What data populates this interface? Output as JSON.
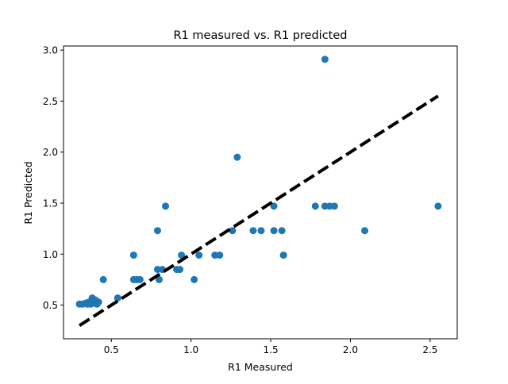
{
  "chart_data": {
    "type": "scatter",
    "title": "R1 measured vs. R1 predicted",
    "xlabel": "R1 Measured",
    "ylabel": "R1 Predicted",
    "xlim": [
      0.2,
      2.67
    ],
    "ylim": [
      0.17,
      3.04
    ],
    "xticks": [
      "0.5",
      "1.0",
      "1.5",
      "2.0",
      "2.5"
    ],
    "yticks": [
      "0.5",
      "1.0",
      "1.5",
      "2.0",
      "2.5",
      "3.0"
    ],
    "grid": false,
    "series": [
      {
        "marker_color": "#1f77b4",
        "points": [
          [
            0.3,
            0.51
          ],
          [
            0.32,
            0.51
          ],
          [
            0.34,
            0.52
          ],
          [
            0.35,
            0.51
          ],
          [
            0.36,
            0.53
          ],
          [
            0.37,
            0.51
          ],
          [
            0.38,
            0.55
          ],
          [
            0.38,
            0.57
          ],
          [
            0.39,
            0.52
          ],
          [
            0.4,
            0.55
          ],
          [
            0.41,
            0.51
          ],
          [
            0.42,
            0.53
          ],
          [
            0.45,
            0.75
          ],
          [
            0.54,
            0.57
          ],
          [
            0.64,
            0.75
          ],
          [
            0.64,
            0.99
          ],
          [
            0.66,
            0.75
          ],
          [
            0.68,
            0.75
          ],
          [
            0.79,
            1.23
          ],
          [
            0.79,
            0.85
          ],
          [
            0.8,
            0.75
          ],
          [
            0.82,
            0.85
          ],
          [
            0.84,
            1.47
          ],
          [
            0.91,
            0.85
          ],
          [
            0.93,
            0.85
          ],
          [
            0.94,
            0.99
          ],
          [
            1.02,
            0.75
          ],
          [
            1.05,
            0.99
          ],
          [
            1.15,
            0.99
          ],
          [
            1.18,
            0.99
          ],
          [
            1.26,
            1.23
          ],
          [
            1.29,
            1.95
          ],
          [
            1.39,
            1.23
          ],
          [
            1.44,
            1.23
          ],
          [
            1.52,
            1.47
          ],
          [
            1.52,
            1.23
          ],
          [
            1.57,
            1.23
          ],
          [
            1.58,
            0.99
          ],
          [
            1.78,
            1.47
          ],
          [
            1.84,
            2.91
          ],
          [
            1.84,
            1.47
          ],
          [
            1.87,
            1.47
          ],
          [
            1.9,
            1.47
          ],
          [
            2.09,
            1.23
          ],
          [
            2.55,
            1.47
          ]
        ]
      }
    ],
    "reference_line": {
      "from": [
        0.3,
        0.3
      ],
      "to": [
        2.55,
        2.55
      ],
      "color": "#000000",
      "style": "dashed"
    }
  }
}
